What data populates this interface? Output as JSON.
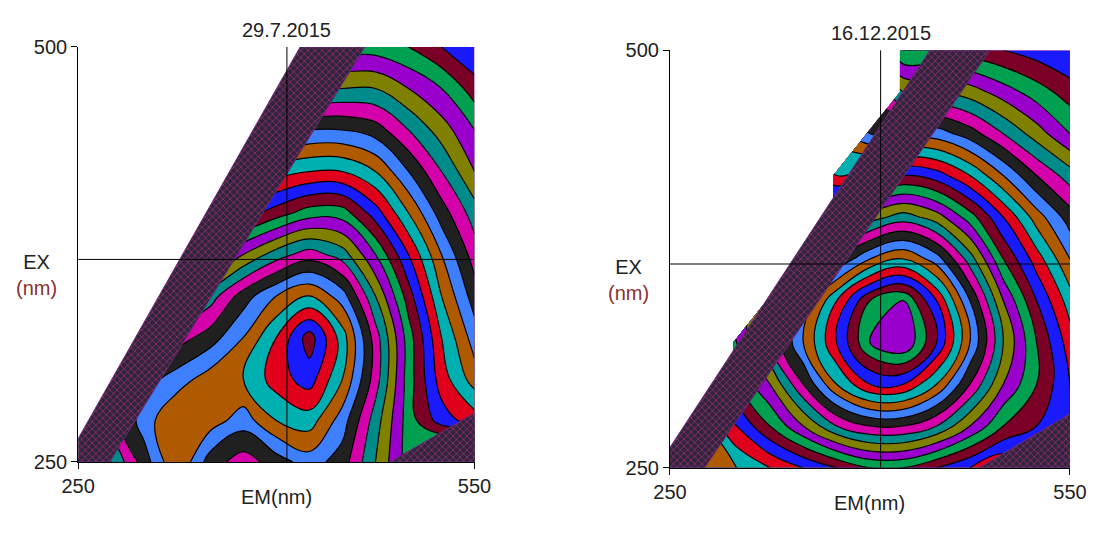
{
  "chart_data": [
    {
      "type": "contour",
      "title": "29.7.2015",
      "xlabel": "EM(nm)",
      "ylabel": "EX\n(nm)",
      "x": [
        250,
        275,
        300,
        325,
        350,
        375,
        400,
        425,
        450,
        475,
        500,
        525,
        550
      ],
      "y": [
        250,
        275,
        300,
        325,
        350,
        375,
        400,
        425,
        450,
        475,
        500
      ],
      "z": [
        [
          40,
          45,
          50,
          55,
          50,
          48,
          50,
          52,
          50,
          45,
          40,
          45,
          50
        ],
        [
          null,
          48,
          52,
          55,
          54,
          52,
          55,
          56,
          52,
          46,
          40,
          36,
          34
        ],
        [
          null,
          null,
          50,
          52,
          54,
          55,
          58,
          60,
          55,
          48,
          40,
          34,
          30
        ],
        [
          null,
          null,
          46,
          48,
          50,
          53,
          57,
          62,
          56,
          48,
          40,
          33,
          28
        ],
        [
          null,
          null,
          null,
          44,
          46,
          50,
          53,
          55,
          52,
          45,
          38,
          31,
          26
        ],
        [
          null,
          null,
          null,
          null,
          40,
          43,
          46,
          48,
          46,
          41,
          35,
          29,
          24
        ],
        [
          null,
          null,
          null,
          null,
          null,
          36,
          38,
          40,
          40,
          36,
          31,
          26,
          22
        ],
        [
          null,
          null,
          null,
          null,
          null,
          30,
          32,
          33,
          33,
          31,
          27,
          23,
          19
        ],
        [
          null,
          null,
          null,
          null,
          null,
          null,
          26,
          27,
          27,
          26,
          23,
          20,
          17
        ],
        [
          null,
          null,
          null,
          null,
          null,
          null,
          null,
          21,
          21,
          21,
          19,
          17,
          14
        ],
        [
          null,
          null,
          null,
          null,
          null,
          null,
          null,
          16,
          16,
          16,
          15,
          13,
          11
        ]
      ],
      "xlim": [
        250,
        550
      ],
      "ylim": [
        250,
        500
      ],
      "xticks": [
        250,
        550
      ],
      "yticks": [
        250,
        500
      ],
      "crosshair": {
        "x": 408,
        "y": 372
      },
      "scatter_bands": [
        {
          "em": [
            240,
            274,
            467,
            418
          ],
          "ex": [
            250,
            250,
            500,
            500
          ]
        },
        {
          "em": [
            486,
            560,
            560
          ],
          "ex": [
            250,
            250,
            284
          ]
        }
      ]
    },
    {
      "type": "contour",
      "title": "16.12.2015",
      "xlabel": "EM(nm)",
      "ylabel": "EX\n(nm)",
      "x": [
        250,
        275,
        300,
        325,
        350,
        375,
        400,
        425,
        450,
        475,
        500,
        525,
        550
      ],
      "y": [
        250,
        275,
        300,
        325,
        350,
        375,
        400,
        425,
        450,
        475,
        500
      ],
      "z": [
        [
          30,
          32,
          34,
          36,
          38,
          40,
          42,
          42,
          40,
          38,
          36,
          40,
          45
        ],
        [
          null,
          34,
          38,
          42,
          46,
          50,
          52,
          52,
          50,
          46,
          42,
          40,
          38
        ],
        [
          null,
          null,
          42,
          46,
          52,
          58,
          62,
          62,
          58,
          52,
          46,
          42,
          38
        ],
        [
          null,
          null,
          44,
          50,
          56,
          62,
          68,
          70,
          64,
          56,
          48,
          42,
          37
        ],
        [
          null,
          null,
          null,
          48,
          54,
          60,
          66,
          68,
          62,
          54,
          46,
          40,
          35
        ],
        [
          null,
          null,
          null,
          null,
          48,
          52,
          56,
          58,
          55,
          49,
          42,
          37,
          32
        ],
        [
          null,
          null,
          null,
          null,
          null,
          44,
          47,
          49,
          47,
          43,
          38,
          33,
          29
        ],
        [
          null,
          null,
          null,
          null,
          null,
          36,
          38,
          40,
          39,
          36,
          32,
          28,
          25
        ],
        [
          null,
          null,
          null,
          null,
          null,
          null,
          30,
          31,
          31,
          29,
          26,
          23,
          20
        ],
        [
          null,
          null,
          null,
          null,
          null,
          null,
          null,
          24,
          24,
          23,
          21,
          19,
          17
        ],
        [
          null,
          null,
          null,
          null,
          null,
          null,
          null,
          18,
          18,
          17,
          16,
          15,
          14
        ]
      ],
      "xlim": [
        250,
        550
      ],
      "ylim": [
        250,
        500
      ],
      "xticks": [
        250,
        550
      ],
      "yticks": [
        250,
        500
      ],
      "crosshair": {
        "x": 408,
        "y": 372
      },
      "scatter_bands": [
        {
          "em": [
            240,
            276,
            490,
            445
          ],
          "ex": [
            250,
            250,
            500,
            500
          ]
        },
        {
          "em": [
            482,
            560,
            560
          ],
          "ex": [
            250,
            250,
            287
          ]
        }
      ]
    }
  ]
}
